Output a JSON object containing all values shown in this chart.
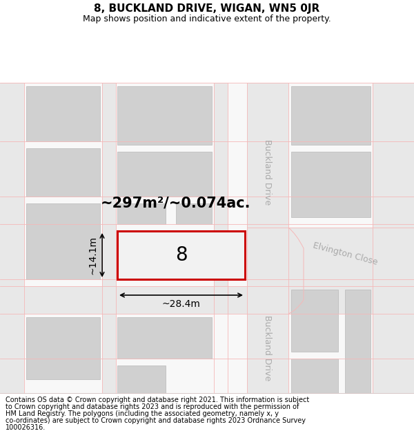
{
  "title": "8, BUCKLAND DRIVE, WIGAN, WN5 0JR",
  "subtitle": "Map shows position and indicative extent of the property.",
  "footer_lines": [
    "Contains OS data © Crown copyright and database right 2021. This information is subject",
    "to Crown copyright and database rights 2023 and is reproduced with the permission of",
    "HM Land Registry. The polygons (including the associated geometry, namely x, y",
    "co-ordinates) are subject to Crown copyright and database rights 2023 Ordnance Survey",
    "100026316."
  ],
  "map_bg": "#f8f8f8",
  "road_color": "#e8e8e8",
  "road_line_color": "#f5b8b8",
  "building_color": "#d0d0d0",
  "building_edge_color": "#b8b8b8",
  "highlight_color": "#cc0000",
  "area_text": "~297m²/~0.074ac.",
  "width_text": "~28.4m",
  "height_text": "~14.1m",
  "number_text": "8",
  "road_label_1": "Buckland Drive",
  "road_label_2": "Buckland Drive",
  "road_label_3": "Elvington Close",
  "road_label_color": "#aaaaaa"
}
